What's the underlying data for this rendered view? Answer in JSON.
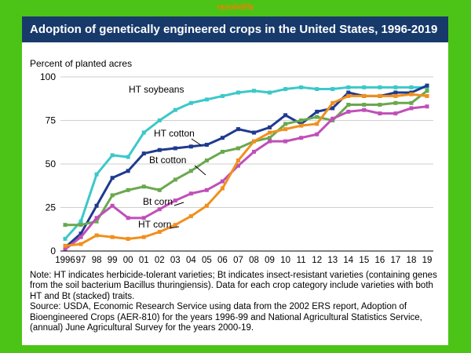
{
  "brand": "resolvilife",
  "title": "Adoption of genetically engineered crops in the United States, 1996-2019",
  "notes": [
    "Note: HT indicates herbicide-tolerant varieties; Bt indicates insect-resistant varieties (containing genes from the soil bacterium Bacillus thuringiensis). Data for each crop category include varieties with both HT and Bt (stacked) traits.",
    "Source: USDA, Economic Research Service using data from the 2002 ERS report, Adoption of Bioengineered Crops (AER-810) for the years 1996-99 and National Agricultural Statistics Service, (annual) June Agricultural Survey for the years 2000-19."
  ],
  "chart_data": {
    "type": "line",
    "title": "Adoption of genetically engineered crops in the United States, 1996-2019",
    "ylabel": "Percent of planted acres",
    "xlabel": "",
    "ylim": [
      0,
      100
    ],
    "yticks": [
      0,
      25,
      50,
      75,
      100
    ],
    "grid": "horizontal",
    "categories": [
      "1996",
      "97",
      "98",
      "99",
      "00",
      "01",
      "02",
      "03",
      "04",
      "05",
      "06",
      "07",
      "08",
      "09",
      "10",
      "11",
      "12",
      "13",
      "14",
      "15",
      "16",
      "17",
      "18",
      "19"
    ],
    "series": [
      {
        "name": "HT soybeans",
        "color": "#3cc8c8",
        "values": [
          7,
          17,
          44,
          55,
          54,
          68,
          75,
          81,
          85,
          87,
          89,
          91,
          92,
          91,
          93,
          94,
          93,
          93,
          94,
          94,
          94,
          94,
          94,
          94
        ]
      },
      {
        "name": "HT cotton",
        "color": "#1f3a8f",
        "values": [
          2,
          10,
          26,
          42,
          46,
          56,
          58,
          59,
          60,
          61,
          65,
          70,
          68,
          71,
          78,
          73,
          80,
          82,
          91,
          89,
          89,
          91,
          91,
          95
        ]
      },
      {
        "name": "Bt cotton",
        "color": "#6aa84f",
        "values": [
          15,
          15,
          17,
          32,
          35,
          37,
          35,
          41,
          46,
          52,
          57,
          59,
          63,
          65,
          73,
          75,
          77,
          75,
          84,
          84,
          84,
          85,
          85,
          92
        ]
      },
      {
        "name": "Bt corn",
        "color": "#c04fb8",
        "values": [
          1,
          8,
          19,
          26,
          19,
          19,
          24,
          29,
          33,
          35,
          40,
          49,
          57,
          63,
          63,
          65,
          67,
          76,
          80,
          81,
          79,
          79,
          82,
          83
        ]
      },
      {
        "name": "HT corn",
        "color": "#f0901e",
        "values": [
          3,
          4,
          9,
          8,
          7,
          8,
          11,
          15,
          20,
          26,
          36,
          52,
          63,
          68,
          70,
          72,
          73,
          85,
          89,
          89,
          89,
          89,
          90,
          89
        ]
      }
    ],
    "annotations": [
      "HT soybeans",
      "HT cotton",
      "Bt cotton",
      "Bt corn",
      "HT corn"
    ]
  }
}
